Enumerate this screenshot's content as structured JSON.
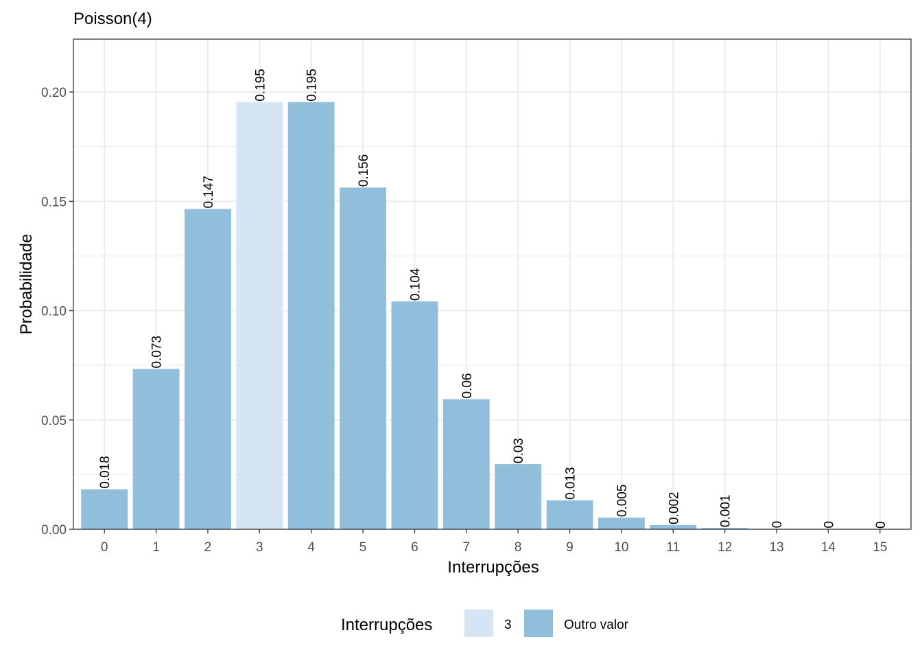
{
  "chart_data": {
    "type": "bar",
    "title": "Poisson(4)",
    "xlabel": "Interrupções",
    "ylabel": "Probabilidade",
    "categories": [
      "0",
      "1",
      "2",
      "3",
      "4",
      "5",
      "6",
      "7",
      "8",
      "9",
      "10",
      "11",
      "12",
      "13",
      "14",
      "15"
    ],
    "values": [
      0.0183,
      0.0733,
      0.1465,
      0.1954,
      0.1954,
      0.1563,
      0.1042,
      0.0595,
      0.0298,
      0.0132,
      0.0053,
      0.0019,
      0.0006,
      0.0002,
      0.0001,
      0.0
    ],
    "data_labels": [
      "0.018",
      "0.073",
      "0.147",
      "0.195",
      "0.195",
      "0.156",
      "0.104",
      "0.06",
      "0.03",
      "0.013",
      "0.005",
      "0.002",
      "0.001",
      "0",
      "0",
      "0"
    ],
    "highlight": [
      "Outro valor",
      "Outro valor",
      "Outro valor",
      "3",
      "Outro valor",
      "Outro valor",
      "Outro valor",
      "Outro valor",
      "Outro valor",
      "Outro valor",
      "Outro valor",
      "Outro valor",
      "Outro valor",
      "Outro valor",
      "Outro valor",
      "Outro valor"
    ],
    "ylim": [
      0,
      0.2242
    ],
    "yticks": [
      0.0,
      0.05,
      0.1,
      0.15,
      0.2
    ],
    "ytick_labels": [
      "0.00",
      "0.05",
      "0.10",
      "0.15",
      "0.20"
    ],
    "grid": true,
    "legend": {
      "title": "Interrupções",
      "position": "bottom",
      "entries": [
        {
          "label": "3",
          "color": "#d6e5f4"
        },
        {
          "label": "Outro valor",
          "color": "#91bedb"
        }
      ]
    },
    "colors": {
      "3": "#d6e5f4",
      "Outro valor": "#91bedb",
      "grid": "#ebebeb",
      "panel_border": "#333333"
    }
  }
}
